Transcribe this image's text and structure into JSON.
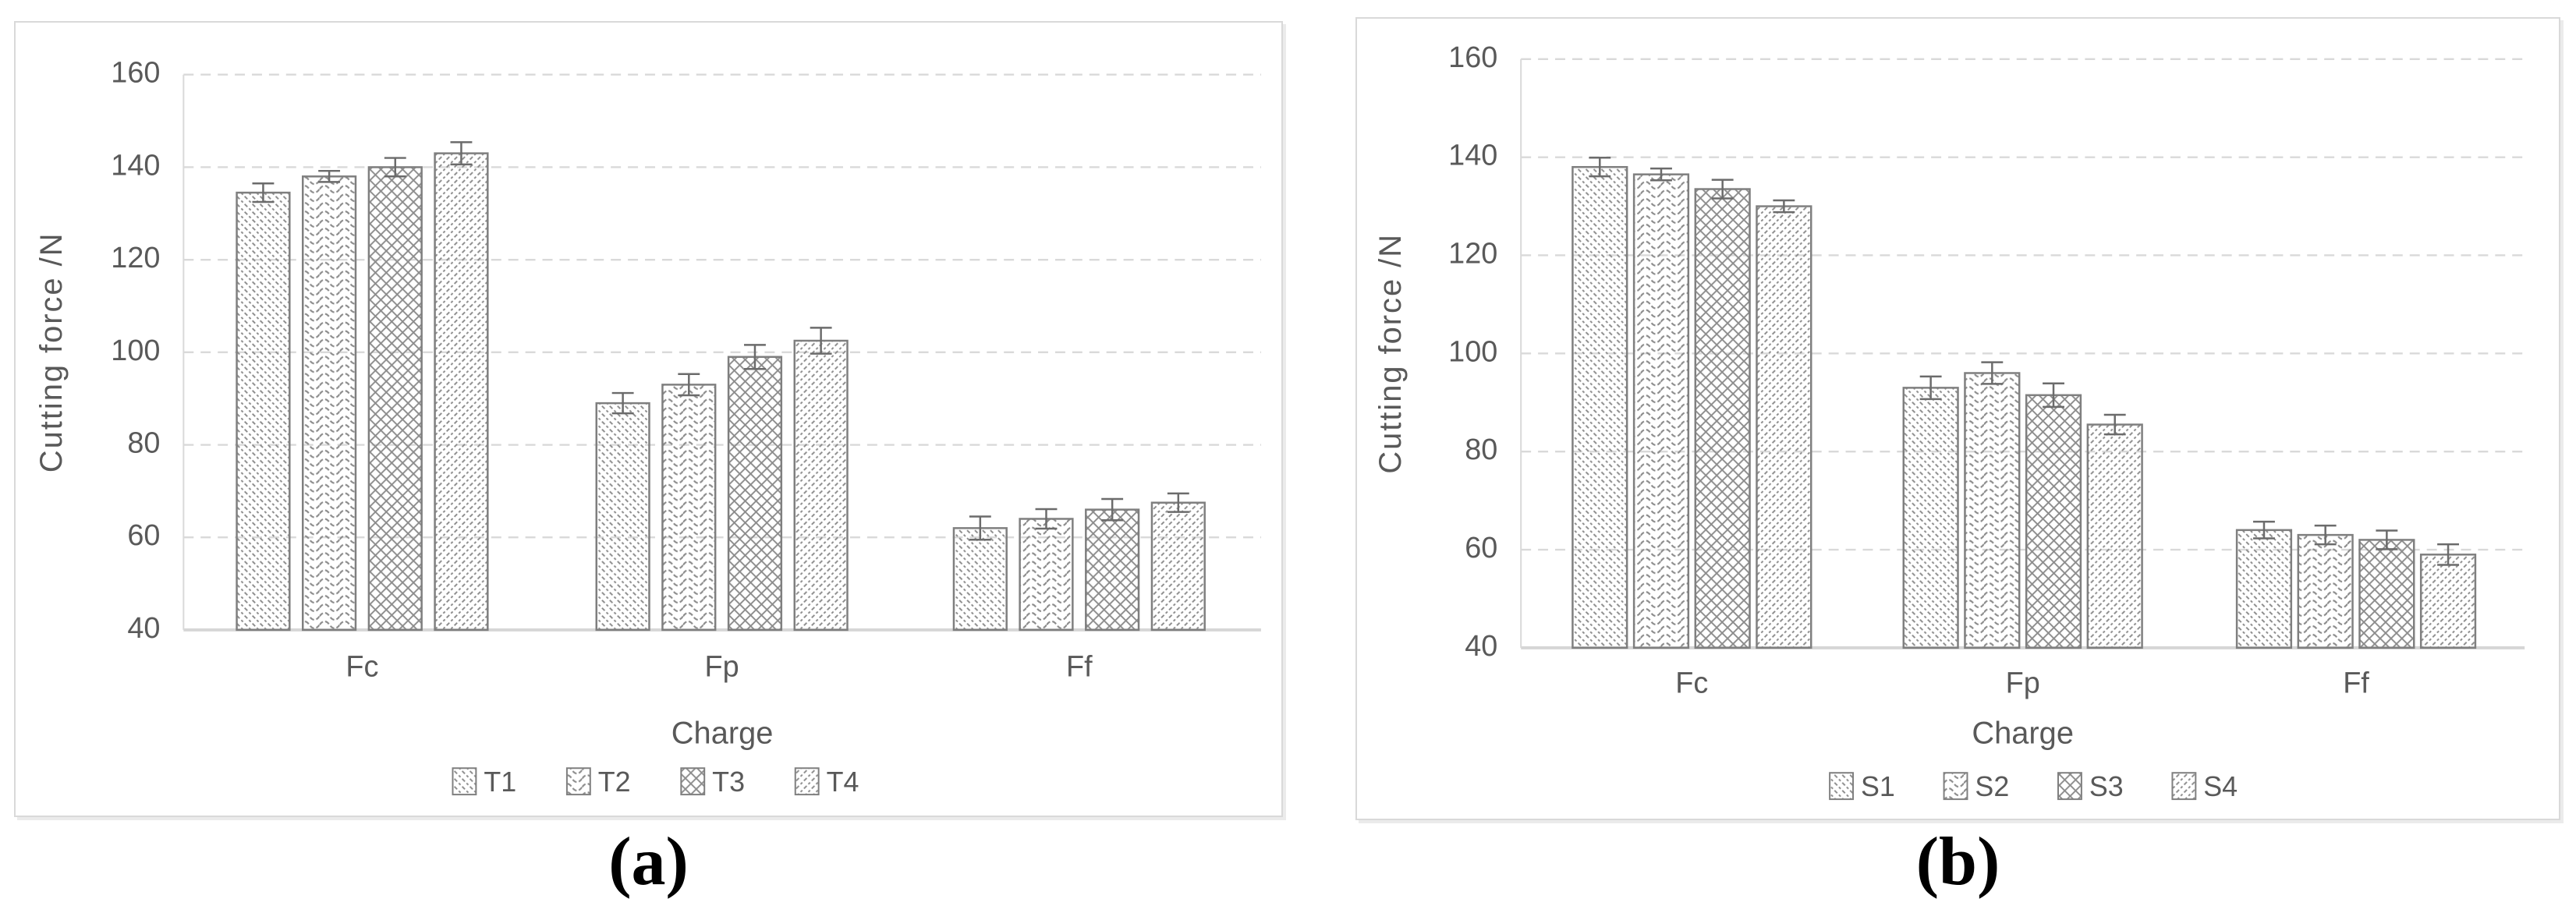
{
  "figure": {
    "captions": {
      "a": "(a)",
      "b": "(b)"
    }
  },
  "colors": {
    "background": "#ffffff",
    "panel_border": "#d9d9d9",
    "grid": "#d9d9d9",
    "baseline": "#d6d6d6",
    "text": "#595959",
    "bar_outline": "#7f7f7f",
    "hatch": "#8c8c8c",
    "error_bar": "#6b6b6b",
    "caption_text": "#000000"
  },
  "chart_data": [
    {
      "id": "a",
      "type": "bar",
      "caption": "(a)",
      "xlabel": "Charge",
      "ylabel": "Cutting force /N",
      "categories": [
        "Fc",
        "Fp",
        "Ff"
      ],
      "ylim": [
        40,
        160
      ],
      "ytick_step": 20,
      "yticks": [
        40,
        60,
        80,
        100,
        120,
        140,
        160
      ],
      "grid": "dashed-horizontal",
      "legend_position": "bottom",
      "error_bars": true,
      "series": [
        {
          "name": "T1",
          "pattern": "diagonal-down-hatch",
          "values": [
            134.5,
            89.0,
            62.0
          ],
          "errors": [
            2.0,
            2.2,
            2.5
          ]
        },
        {
          "name": "T2",
          "pattern": "wave-hatch",
          "values": [
            138.0,
            93.0,
            64.0
          ],
          "errors": [
            1.2,
            2.3,
            2.1
          ]
        },
        {
          "name": "T3",
          "pattern": "diamond-crosshatch",
          "values": [
            140.0,
            99.0,
            66.0
          ],
          "errors": [
            2.0,
            2.6,
            2.3
          ]
        },
        {
          "name": "T4",
          "pattern": "diagonal-up-hatch",
          "values": [
            143.0,
            102.5,
            67.5
          ],
          "errors": [
            2.4,
            2.8,
            2.0
          ]
        }
      ]
    },
    {
      "id": "b",
      "type": "bar",
      "caption": "(b)",
      "xlabel": "Charge",
      "ylabel": "Cutting force /N",
      "categories": [
        "Fc",
        "Fp",
        "Ff"
      ],
      "ylim": [
        40,
        160
      ],
      "ytick_step": 20,
      "yticks": [
        40,
        60,
        80,
        100,
        120,
        140,
        160
      ],
      "grid": "dashed-horizontal",
      "legend_position": "bottom",
      "error_bars": true,
      "series": [
        {
          "name": "S1",
          "pattern": "diagonal-down-hatch",
          "values": [
            138.0,
            93.0,
            64.0
          ],
          "errors": [
            1.9,
            2.3,
            1.7
          ]
        },
        {
          "name": "S2",
          "pattern": "wave-hatch",
          "values": [
            136.5,
            96.0,
            63.0
          ],
          "errors": [
            1.2,
            2.2,
            1.9
          ]
        },
        {
          "name": "S3",
          "pattern": "diamond-crosshatch",
          "values": [
            133.5,
            91.5,
            62.0
          ],
          "errors": [
            1.9,
            2.4,
            1.9
          ]
        },
        {
          "name": "S4",
          "pattern": "diagonal-up-hatch",
          "values": [
            130.0,
            85.5,
            59.0
          ],
          "errors": [
            1.2,
            2.0,
            2.1
          ]
        }
      ]
    }
  ]
}
